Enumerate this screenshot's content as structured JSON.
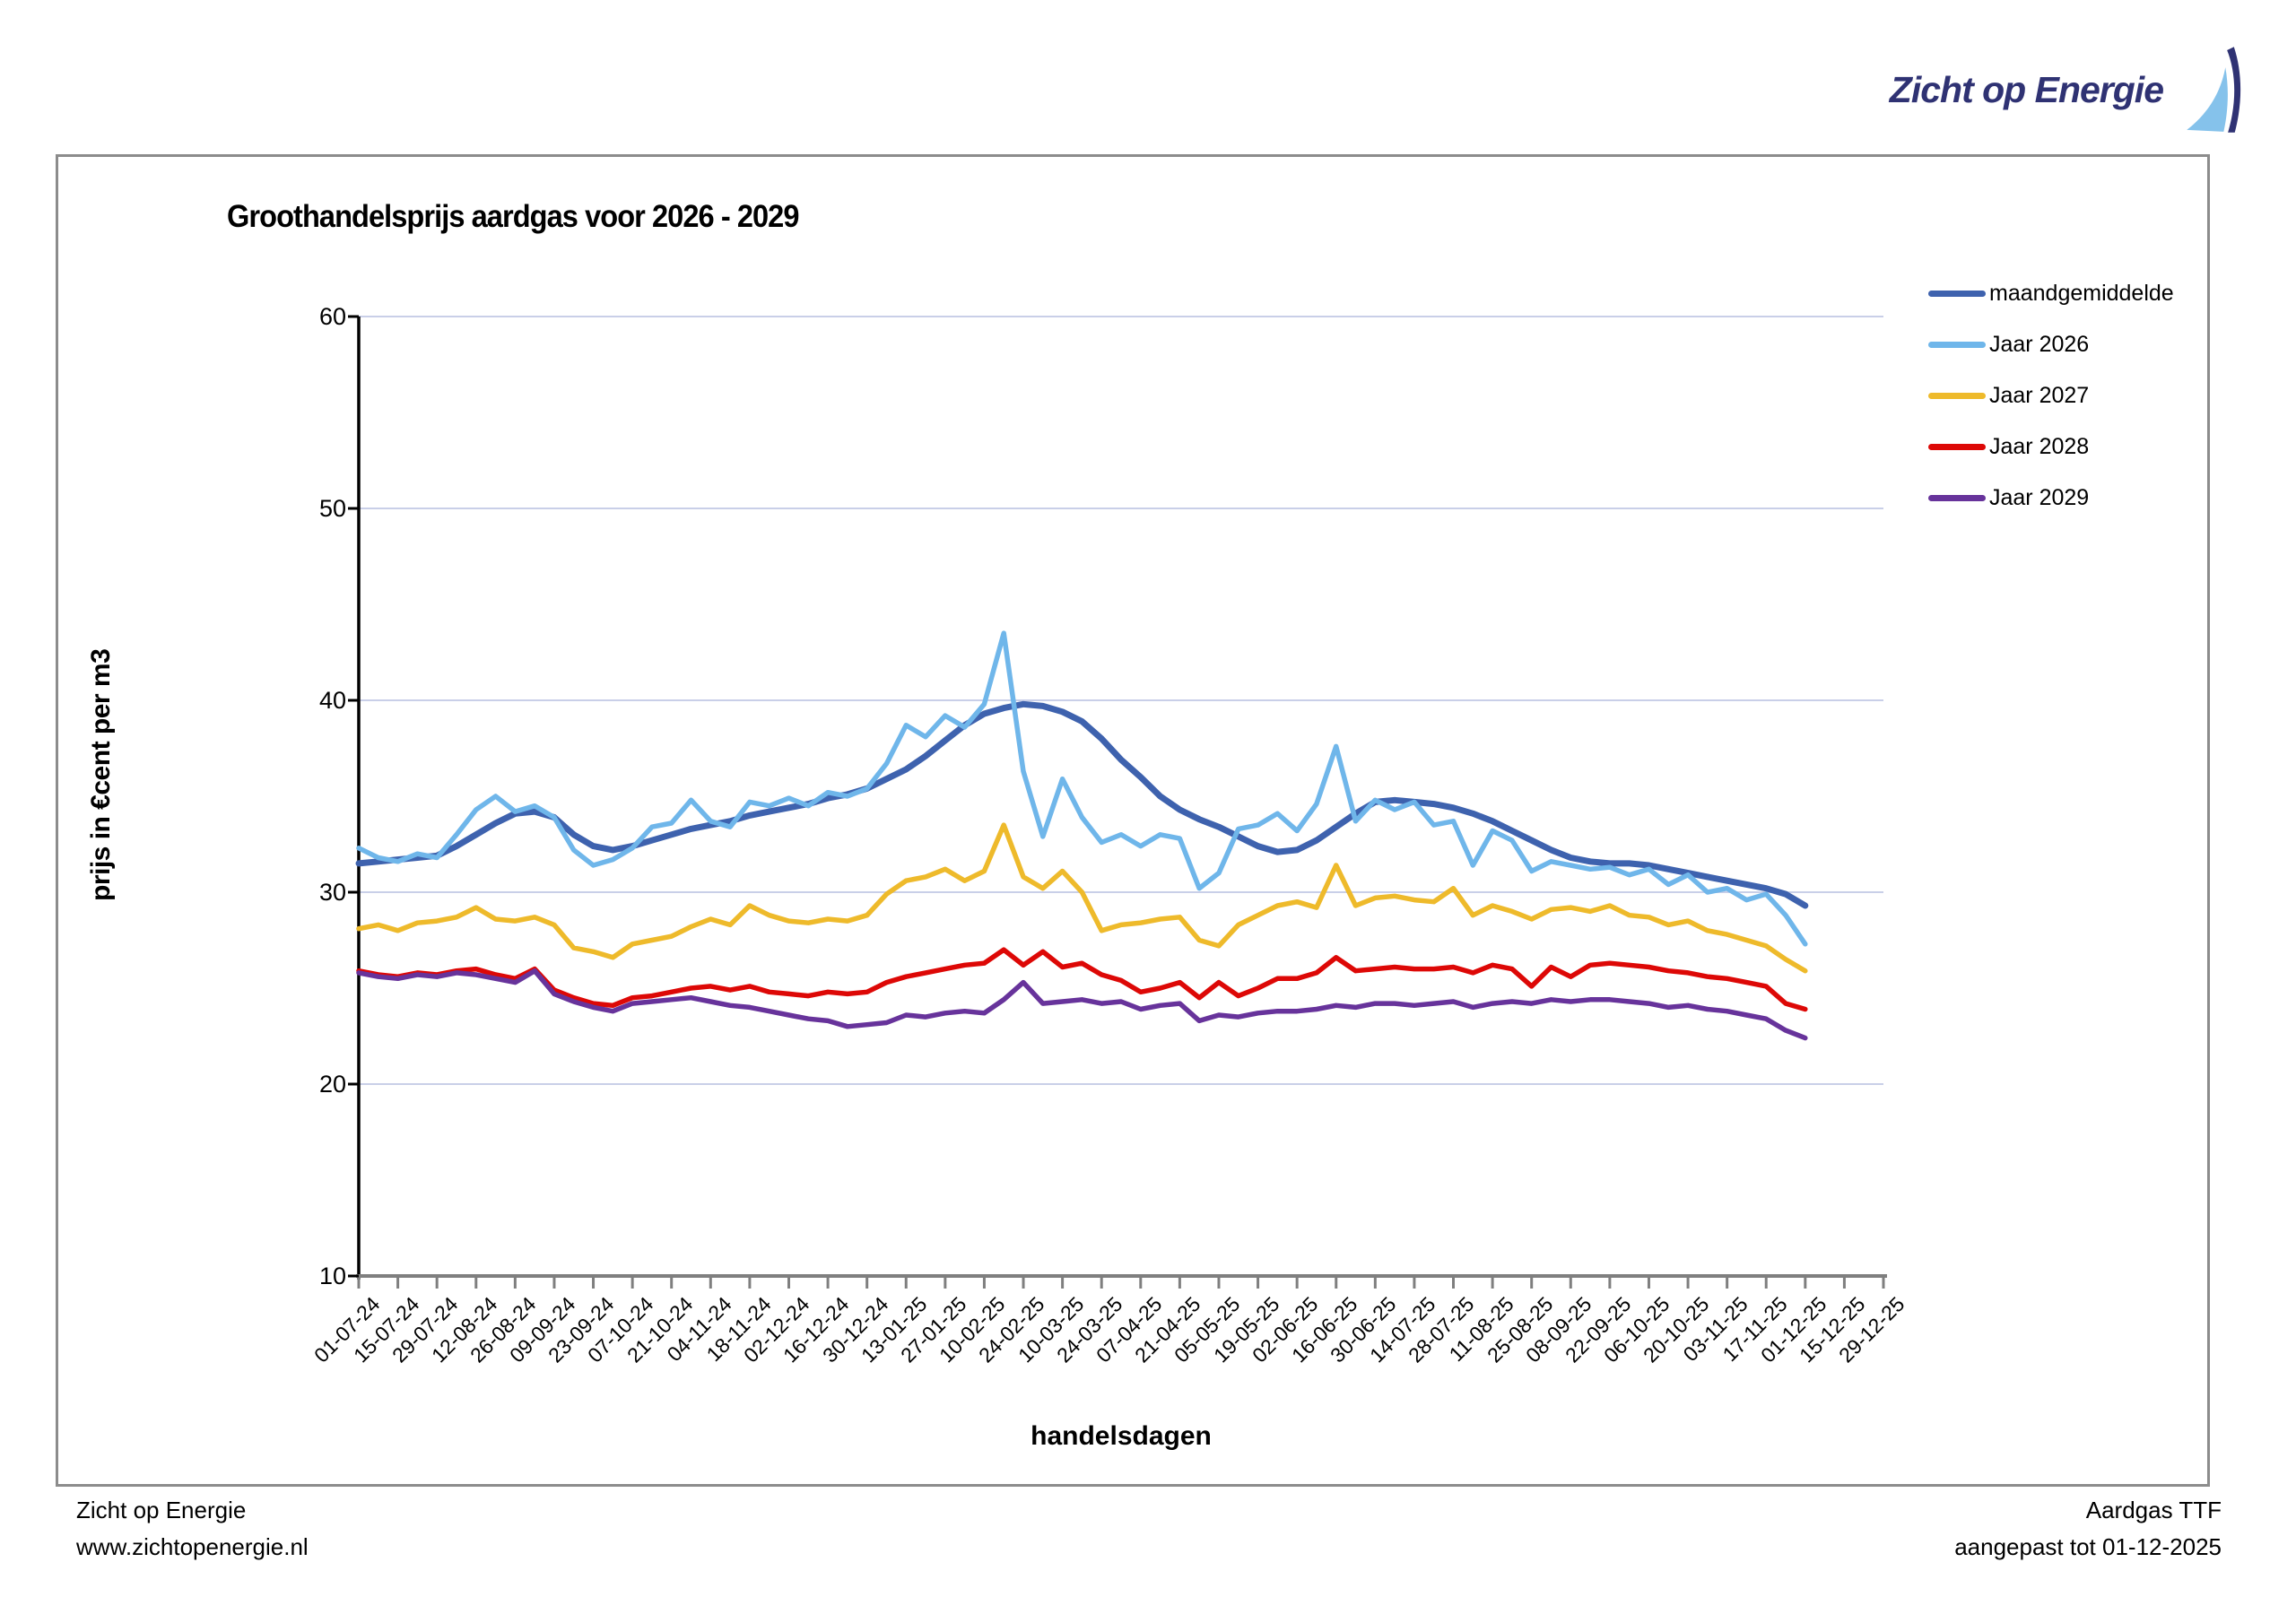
{
  "logo": {
    "text": "Zicht op Energie"
  },
  "footer": {
    "left_line1": "Zicht op Energie",
    "left_line2": "www.zichtopenergie.nl",
    "right_line1": "Aardgas TTF",
    "right_line2": "aangepast tot 01-12-2025"
  },
  "chart_data": {
    "type": "line",
    "title": "Groothandelsprijs aardgas voor 2026 - 2029",
    "xlabel": "handelsdagen",
    "ylabel": "prijs in €cent per m3",
    "ylim": [
      10,
      60
    ],
    "y_ticks": [
      60,
      50,
      40,
      30,
      20,
      10
    ],
    "grid": "horizontal",
    "legend_position": "right-top",
    "gridline_color": "#C9CFE8",
    "x_axis_color": "#7F7F7F",
    "y_axis_color": "#000000",
    "x_tick_labels": [
      "01-07-24",
      "15-07-24",
      "29-07-24",
      "12-08-24",
      "26-08-24",
      "09-09-24",
      "23-09-24",
      "07-10-24",
      "21-10-24",
      "04-11-24",
      "18-11-24",
      "02-12-24",
      "16-12-24",
      "30-12-24",
      "13-01-25",
      "27-01-25",
      "10-02-25",
      "24-02-25",
      "10-03-25",
      "24-03-25",
      "07-04-25",
      "21-04-25",
      "05-05-25",
      "19-05-25",
      "02-06-25",
      "16-06-25",
      "30-06-25",
      "14-07-25",
      "28-07-25",
      "11-08-25",
      "25-08-25",
      "08-09-25",
      "22-09-25",
      "06-10-25",
      "20-10-25",
      "03-11-25",
      "17-11-25",
      "01-12-25",
      "15-12-25",
      "29-12-25"
    ],
    "x_note": "series values are weekly samples from 01-07-24 through 01-12-25 (2 samples per x tick)",
    "series": [
      {
        "name": "maandgemiddelde",
        "color": "#3E62AE",
        "width": 7,
        "values": [
          31.5,
          31.6,
          31.7,
          31.8,
          31.9,
          32.4,
          33.0,
          33.6,
          34.1,
          34.2,
          33.9,
          33.0,
          32.4,
          32.2,
          32.4,
          32.7,
          33.0,
          33.3,
          33.5,
          33.7,
          34.0,
          34.2,
          34.4,
          34.6,
          34.9,
          35.1,
          35.4,
          35.9,
          36.4,
          37.1,
          37.9,
          38.7,
          39.3,
          39.6,
          39.8,
          39.7,
          39.4,
          38.9,
          38.0,
          36.9,
          36.0,
          35.0,
          34.3,
          33.8,
          33.4,
          32.9,
          32.4,
          32.1,
          32.2,
          32.7,
          33.4,
          34.1,
          34.7,
          34.8,
          34.7,
          34.6,
          34.4,
          34.1,
          33.7,
          33.2,
          32.7,
          32.2,
          31.8,
          31.6,
          31.5,
          31.5,
          31.4,
          31.2,
          31.0,
          30.8,
          30.6,
          30.4,
          30.2,
          29.9,
          29.3
        ]
      },
      {
        "name": "Jaar 2026",
        "color": "#6FB6EA",
        "width": 5.5,
        "values": [
          32.3,
          31.8,
          31.6,
          32.0,
          31.8,
          33.0,
          34.3,
          35.0,
          34.2,
          34.5,
          33.9,
          32.2,
          31.4,
          31.7,
          32.3,
          33.4,
          33.6,
          34.8,
          33.7,
          33.4,
          34.7,
          34.5,
          34.9,
          34.5,
          35.2,
          35.0,
          35.4,
          36.7,
          38.7,
          38.1,
          39.2,
          38.6,
          39.8,
          43.5,
          36.3,
          32.9,
          35.9,
          33.9,
          32.6,
          33.0,
          32.4,
          33.0,
          32.8,
          30.2,
          31.0,
          33.3,
          33.5,
          34.1,
          33.2,
          34.6,
          37.6,
          33.7,
          34.8,
          34.3,
          34.7,
          33.5,
          33.7,
          31.4,
          33.2,
          32.7,
          31.1,
          31.6,
          31.4,
          31.2,
          31.3,
          30.9,
          31.2,
          30.4,
          30.9,
          30.0,
          30.2,
          29.6,
          29.9,
          28.8,
          27.3
        ]
      },
      {
        "name": "Jaar 2027",
        "color": "#EEBA2B",
        "width": 5.5,
        "values": [
          28.1,
          28.3,
          28.0,
          28.4,
          28.5,
          28.7,
          29.2,
          28.6,
          28.5,
          28.7,
          28.3,
          27.1,
          26.9,
          26.6,
          27.3,
          27.5,
          27.7,
          28.2,
          28.6,
          28.3,
          29.3,
          28.8,
          28.5,
          28.4,
          28.6,
          28.5,
          28.8,
          29.9,
          30.6,
          30.8,
          31.2,
          30.6,
          31.1,
          33.5,
          30.8,
          30.2,
          31.1,
          30.0,
          28.0,
          28.3,
          28.4,
          28.6,
          28.7,
          27.5,
          27.2,
          28.3,
          28.8,
          29.3,
          29.5,
          29.2,
          31.4,
          29.3,
          29.7,
          29.8,
          29.6,
          29.5,
          30.2,
          28.8,
          29.3,
          29.0,
          28.6,
          29.1,
          29.2,
          29.0,
          29.3,
          28.8,
          28.7,
          28.3,
          28.5,
          28.0,
          27.8,
          27.5,
          27.2,
          26.5,
          25.9
        ]
      },
      {
        "name": "Jaar 2028",
        "color": "#DD0806",
        "width": 5.5,
        "values": [
          25.9,
          25.7,
          25.6,
          25.8,
          25.7,
          25.9,
          26.0,
          25.7,
          25.5,
          26.0,
          24.9,
          24.5,
          24.2,
          24.1,
          24.5,
          24.6,
          24.8,
          25.0,
          25.1,
          24.9,
          25.1,
          24.8,
          24.7,
          24.6,
          24.8,
          24.7,
          24.8,
          25.3,
          25.6,
          25.8,
          26.0,
          26.2,
          26.3,
          27.0,
          26.2,
          26.9,
          26.1,
          26.3,
          25.7,
          25.4,
          24.8,
          25.0,
          25.3,
          24.5,
          25.3,
          24.6,
          25.0,
          25.5,
          25.5,
          25.8,
          26.6,
          25.9,
          26.0,
          26.1,
          26.0,
          26.0,
          26.1,
          25.8,
          26.2,
          26.0,
          25.1,
          26.1,
          25.6,
          26.2,
          26.3,
          26.2,
          26.1,
          25.9,
          25.8,
          25.6,
          25.5,
          25.3,
          25.1,
          24.2,
          23.9
        ]
      },
      {
        "name": "Jaar 2029",
        "color": "#67339B",
        "width": 5.5,
        "values": [
          25.8,
          25.6,
          25.5,
          25.7,
          25.6,
          25.8,
          25.7,
          25.5,
          25.3,
          25.9,
          24.7,
          24.3,
          24.0,
          23.8,
          24.2,
          24.3,
          24.4,
          24.5,
          24.3,
          24.1,
          24.0,
          23.8,
          23.6,
          23.4,
          23.3,
          23.0,
          23.1,
          23.2,
          23.6,
          23.5,
          23.7,
          23.8,
          23.7,
          24.4,
          25.3,
          24.2,
          24.3,
          24.4,
          24.2,
          24.3,
          23.9,
          24.1,
          24.2,
          23.3,
          23.6,
          23.5,
          23.7,
          23.8,
          23.8,
          23.9,
          24.1,
          24.0,
          24.2,
          24.2,
          24.1,
          24.2,
          24.3,
          24.0,
          24.2,
          24.3,
          24.2,
          24.4,
          24.3,
          24.4,
          24.4,
          24.3,
          24.2,
          24.0,
          24.1,
          23.9,
          23.8,
          23.6,
          23.4,
          22.8,
          22.4
        ]
      }
    ]
  }
}
